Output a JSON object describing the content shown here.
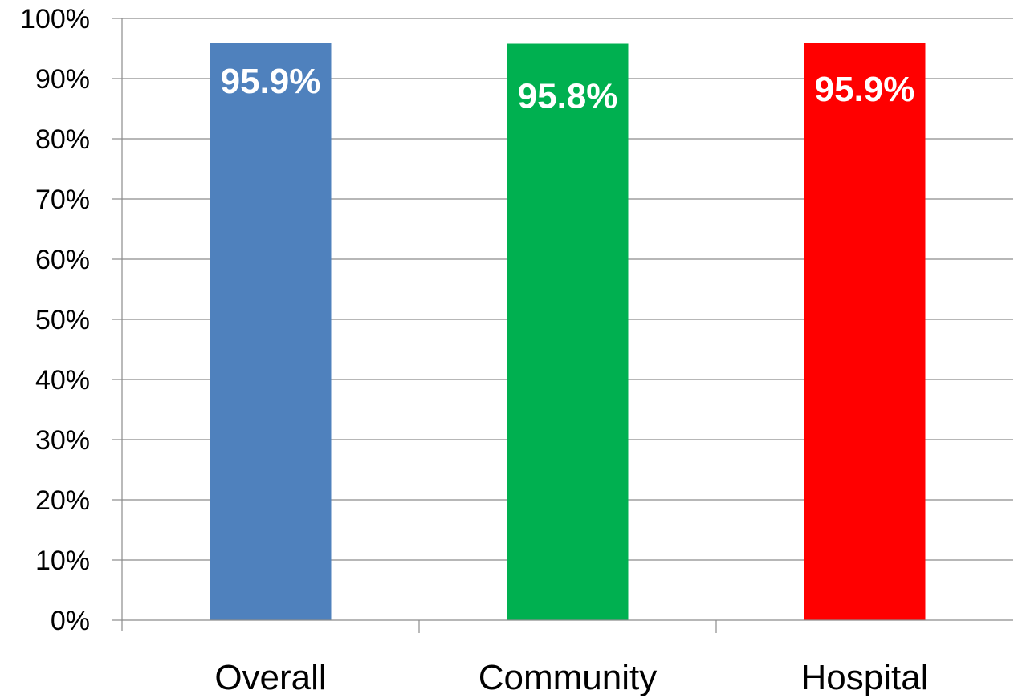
{
  "chart_data": {
    "type": "bar",
    "categories": [
      "Overall",
      "Community",
      "Hospital"
    ],
    "values": [
      95.9,
      95.8,
      95.9
    ],
    "data_labels": [
      "95.9%",
      "95.8%",
      "95.9%"
    ],
    "colors": [
      "#4F81BD",
      "#00B050",
      "#FF0000"
    ],
    "ylim": [
      0,
      100
    ],
    "yticks": [
      0,
      10,
      20,
      30,
      40,
      50,
      60,
      70,
      80,
      90,
      100
    ],
    "ytick_labels": [
      "0%",
      "10%",
      "20%",
      "30%",
      "40%",
      "50%",
      "60%",
      "70%",
      "80%",
      "90%",
      "100%"
    ],
    "grid": true,
    "legend": "none",
    "title": "",
    "xlabel": "",
    "ylabel": ""
  }
}
